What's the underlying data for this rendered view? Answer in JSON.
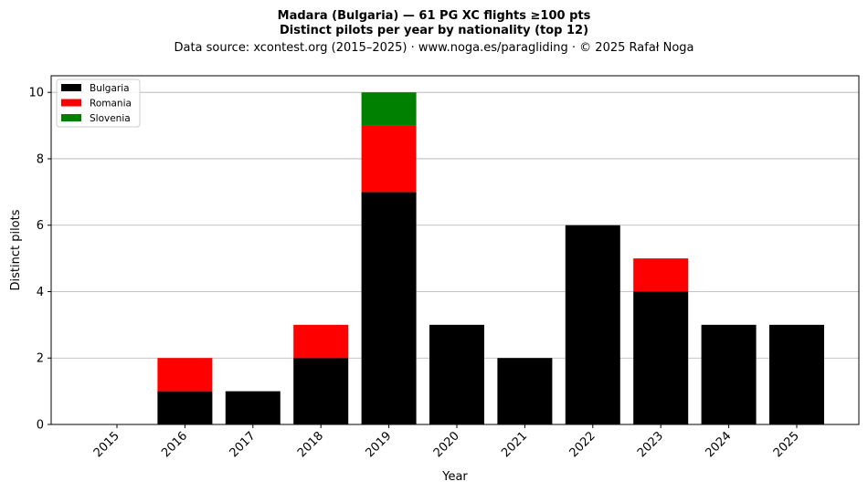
{
  "chart_data": {
    "type": "bar",
    "stacked": true,
    "title_line1": "Madara (Bulgaria)  —  61 PG XC flights ≥100 pts",
    "title_line2": "Distinct pilots per year by nationality (top 12)",
    "subtitle": "Data source: xcontest.org (2015–2025)  ·  www.noga.es/paragliding  ·  © 2025 Rafał Noga",
    "xlabel": "Year",
    "ylabel": "Distinct pilots",
    "categories": [
      "2015",
      "2016",
      "2017",
      "2018",
      "2019",
      "2020",
      "2021",
      "2022",
      "2023",
      "2024",
      "2025"
    ],
    "series": [
      {
        "name": "Bulgaria",
        "color": "#000000",
        "values": [
          0,
          1,
          1,
          2,
          7,
          3,
          2,
          6,
          4,
          3,
          3
        ]
      },
      {
        "name": "Romania",
        "color": "#ff0000",
        "values": [
          0,
          1,
          0,
          1,
          2,
          0,
          0,
          0,
          1,
          0,
          0
        ]
      },
      {
        "name": "Slovenia",
        "color": "#008000",
        "values": [
          0,
          0,
          0,
          0,
          1,
          0,
          0,
          0,
          0,
          0,
          0
        ]
      }
    ],
    "ylim": [
      0,
      10.5
    ],
    "yticks": [
      0,
      2,
      4,
      6,
      8,
      10
    ],
    "grid": "y",
    "legend_position": "top-left"
  }
}
